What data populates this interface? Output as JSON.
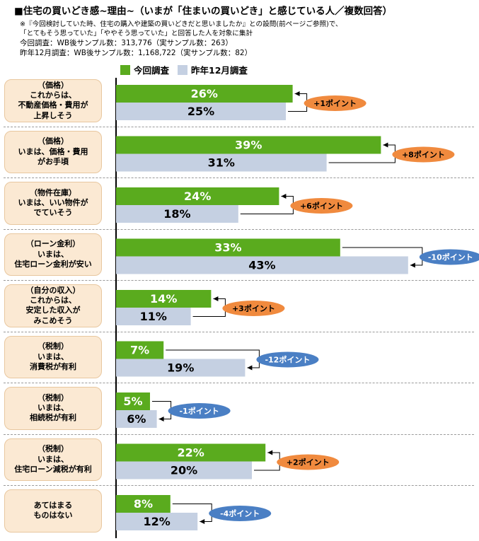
{
  "header": {
    "title": "■住宅の買いどき感~理由~（いまが「住まいの買いどき」と感じている人／複数回答）",
    "note1": "※『今回検討していた時、住宅の購入や建築の買いどきだと思いましたか』との設問(前ページご参照)で、",
    "note2": "「とてもそう思っていた」「ややそう思っていた」と回答した人を対象に集計",
    "sample1": "今回調査：WB後サンプル数：313,776（実サンプル数：263）",
    "sample2": "昨年12月調査：WB後サンプル数：1,168,722（実サンプル数：82）"
  },
  "legend": {
    "current": "今回調査",
    "previous": "昨年12月調査"
  },
  "colors": {
    "current": "#5aab1e",
    "previous": "#c5d0e2",
    "positive_badge": "#f08a3e",
    "negative_badge": "#4a7fc4",
    "label_bg": "#fbe9d3"
  },
  "chart_data": {
    "type": "bar",
    "categories": [
      "（価格）\nこれからは、\n不動産価格・費用が\n上昇しそう",
      "（価格）\nいまは、価格・費用\nがお手頃",
      "（物件在庫）\nいまは、いい物件が\nでていそう",
      "（ローン金利）\nいまは、\n住宅ローン金利が安い",
      "（自分の収入）\nこれからは、\n安定した収入が\nみこめそう",
      "（税制）\nいまは、\n消費税が有利",
      "（税制）\nいまは、\n相続税が有利",
      "（税制）\nいまは、\n住宅ローン減税が有利",
      "あてはまる\nものはない"
    ],
    "series": [
      {
        "name": "今回調査",
        "values": [
          26,
          39,
          24,
          33,
          14,
          7,
          5,
          22,
          8
        ]
      },
      {
        "name": "昨年12月調査",
        "values": [
          25,
          31,
          18,
          43,
          11,
          19,
          6,
          20,
          12
        ]
      }
    ],
    "value_labels_current": [
      "26%",
      "39%",
      "24%",
      "33%",
      "14%",
      "7%",
      "5%",
      "22%",
      "8%"
    ],
    "value_labels_previous": [
      "25%",
      "31%",
      "18%",
      "43%",
      "11%",
      "19%",
      "6%",
      "20%",
      "12%"
    ],
    "differences": [
      "+1ポイント",
      "+8ポイント",
      "+6ポイント",
      "-10ポイント",
      "+3ポイント",
      "-12ポイント",
      "-1ポイント",
      "+2ポイント",
      "-4ポイント"
    ],
    "diff_values": [
      1,
      8,
      6,
      -10,
      3,
      -12,
      -1,
      2,
      -4
    ],
    "xlim": [
      0,
      45
    ],
    "orientation": "horizontal"
  }
}
